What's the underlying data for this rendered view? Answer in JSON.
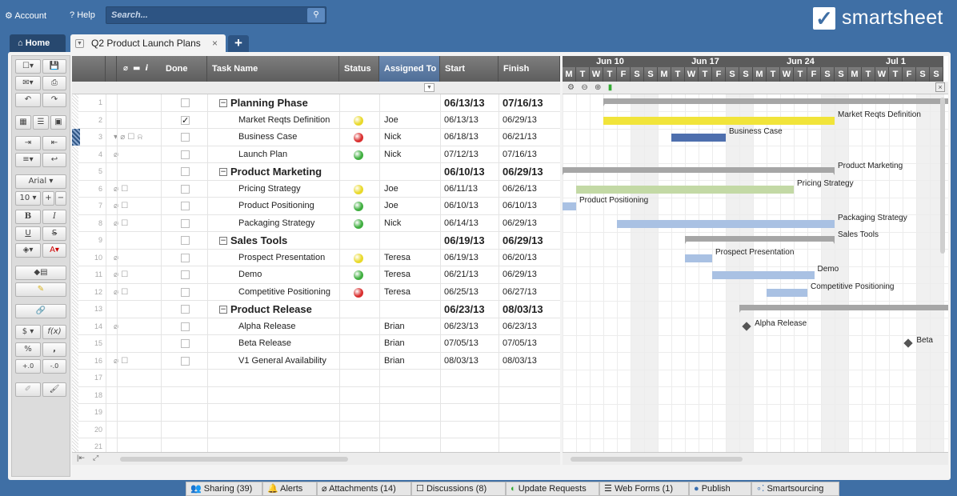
{
  "topbar": {
    "account_label": "Account",
    "help_label": "Help",
    "search_placeholder": "Search...",
    "logo_text": "smartsheet"
  },
  "tabs": {
    "home": "Home",
    "sheet": "Q2 Product Launch Plans",
    "close": "×",
    "add": "+"
  },
  "toolbar": {
    "font_name": "Arial",
    "font_size": "10",
    "currency": "$",
    "function": "f(x)",
    "percent": "%",
    "comma": ","
  },
  "columns": {
    "done": "Done",
    "task_name": "Task Name",
    "status": "Status",
    "assigned_to": "Assigned To",
    "start": "Start",
    "finish": "Finish"
  },
  "rows": [
    {
      "num": "1",
      "task": "Planning Phase",
      "phase": true,
      "assigned": "",
      "start": "06/13/13",
      "finish": "07/16/13",
      "done": false,
      "status": "",
      "icons": ""
    },
    {
      "num": "2",
      "task": "Market Reqts Definition",
      "phase": false,
      "assigned": "Joe",
      "start": "06/13/13",
      "finish": "06/29/13",
      "done": true,
      "status": "yellow",
      "icons": ""
    },
    {
      "num": "3",
      "task": "Business Case",
      "phase": false,
      "assigned": "Nick",
      "start": "06/18/13",
      "finish": "06/21/13",
      "done": false,
      "status": "red",
      "icons": "▾ ⌀ ☐ ⍾"
    },
    {
      "num": "4",
      "task": "Launch Plan",
      "phase": false,
      "assigned": "Nick",
      "start": "07/12/13",
      "finish": "07/16/13",
      "done": false,
      "status": "green",
      "icons": "⌀"
    },
    {
      "num": "5",
      "task": "Product Marketing",
      "phase": true,
      "assigned": "",
      "start": "06/10/13",
      "finish": "06/29/13",
      "done": false,
      "status": "",
      "icons": ""
    },
    {
      "num": "6",
      "task": "Pricing Strategy",
      "phase": false,
      "assigned": "Joe",
      "start": "06/11/13",
      "finish": "06/26/13",
      "done": false,
      "status": "yellow",
      "icons": "⌀ ☐"
    },
    {
      "num": "7",
      "task": "Product Positioning",
      "phase": false,
      "assigned": "Joe",
      "start": "06/10/13",
      "finish": "06/10/13",
      "done": false,
      "status": "green",
      "icons": "⌀ ☐"
    },
    {
      "num": "8",
      "task": "Packaging Strategy",
      "phase": false,
      "assigned": "Nick",
      "start": "06/14/13",
      "finish": "06/29/13",
      "done": false,
      "status": "green",
      "icons": "⌀ ☐"
    },
    {
      "num": "9",
      "task": "Sales Tools",
      "phase": true,
      "assigned": "",
      "start": "06/19/13",
      "finish": "06/29/13",
      "done": false,
      "status": "",
      "icons": ""
    },
    {
      "num": "10",
      "task": "Prospect Presentation",
      "phase": false,
      "assigned": "Teresa",
      "start": "06/19/13",
      "finish": "06/20/13",
      "done": false,
      "status": "yellow",
      "icons": "⌀"
    },
    {
      "num": "11",
      "task": "Demo",
      "phase": false,
      "assigned": "Teresa",
      "start": "06/21/13",
      "finish": "06/29/13",
      "done": false,
      "status": "green",
      "icons": "⌀ ☐"
    },
    {
      "num": "12",
      "task": "Competitive Positioning",
      "phase": false,
      "assigned": "Teresa",
      "start": "06/25/13",
      "finish": "06/27/13",
      "done": false,
      "status": "red",
      "icons": "⌀ ☐"
    },
    {
      "num": "13",
      "task": "Product Release",
      "phase": true,
      "assigned": "",
      "start": "06/23/13",
      "finish": "08/03/13",
      "done": false,
      "status": "",
      "icons": ""
    },
    {
      "num": "14",
      "task": "Alpha Release",
      "phase": false,
      "assigned": "Brian",
      "start": "06/23/13",
      "finish": "06/23/13",
      "done": false,
      "status": "",
      "icons": "⌀"
    },
    {
      "num": "15",
      "task": "Beta Release",
      "phase": false,
      "assigned": "Brian",
      "start": "07/05/13",
      "finish": "07/05/13",
      "done": false,
      "status": "",
      "icons": ""
    },
    {
      "num": "16",
      "task": "V1 General Availability",
      "phase": false,
      "assigned": "Brian",
      "start": "08/03/13",
      "finish": "08/03/13",
      "done": false,
      "status": "",
      "icons": "⌀ ☐"
    },
    {
      "num": "17"
    },
    {
      "num": "18"
    },
    {
      "num": "19"
    },
    {
      "num": "20"
    },
    {
      "num": "21"
    }
  ],
  "gantt": {
    "months": [
      "Jun 10",
      "Jun 17",
      "Jun 24",
      "Jul 1"
    ],
    "days": [
      "M",
      "T",
      "W",
      "T",
      "F",
      "S",
      "S",
      "M",
      "T",
      "W",
      "T",
      "F",
      "S",
      "S",
      "M",
      "T",
      "W",
      "T",
      "F",
      "S",
      "S",
      "M",
      "T",
      "W",
      "T",
      "F",
      "S",
      "S"
    ],
    "labels": {
      "r2": "Market Reqts Definition",
      "r3": "Business Case",
      "r5": "Product Marketing",
      "r6": "Pricing Strategy",
      "r7": "Product Positioning",
      "r8": "Packaging Strategy",
      "r9": "Sales Tools",
      "r10": "Prospect Presentation",
      "r11": "Demo",
      "r12": "Competitive Positioning",
      "r14": "Alpha Release",
      "r15": "Beta"
    },
    "colors": {
      "summary": "#a6a6a6",
      "yellow": "#f1e43a",
      "blue": "#4e6fae",
      "green": "#c3d9a5",
      "lightblue": "#a9c1e3"
    }
  },
  "status_colors": {
    "yellow": "#e9d92a",
    "red": "#d92f2f",
    "green": "#3fae3f"
  },
  "bottom_tabs": {
    "sharing": "Sharing (39)",
    "alerts": "Alerts",
    "attachments": "Attachments (14)",
    "discussions": "Discussions (8)",
    "update_requests": "Update Requests",
    "web_forms": "Web Forms (1)",
    "publish": "Publish",
    "smartsourcing": "Smartsourcing"
  }
}
